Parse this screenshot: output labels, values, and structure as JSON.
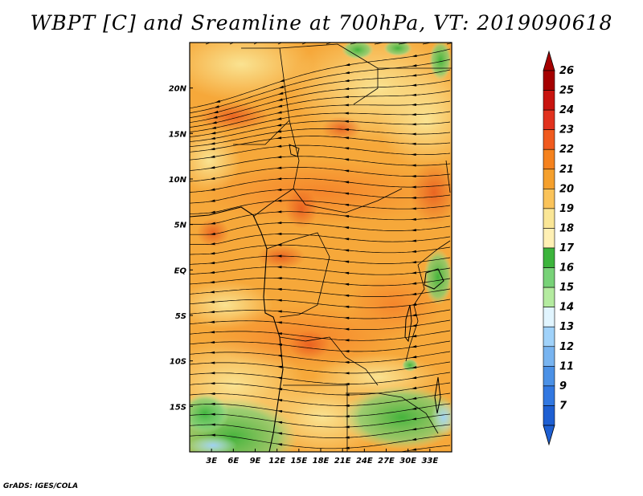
{
  "title": "WBPT [C] and Sreamline at 700hPa, VT: 2019090618",
  "footer": "GrADS: IGES/COLA",
  "map": {
    "lon_range": [
      0,
      36
    ],
    "lat_range": [
      -20,
      25
    ],
    "x_ticks": [
      "3E",
      "6E",
      "9E",
      "12E",
      "15E",
      "18E",
      "21E",
      "24E",
      "27E",
      "30E",
      "33E"
    ],
    "y_ticks": [
      "20N",
      "15N",
      "10N",
      "5N",
      "EQ",
      "5S",
      "10S",
      "15S"
    ]
  },
  "colorbar": {
    "levels": [
      "26",
      "25",
      "24",
      "23",
      "22",
      "21",
      "20",
      "19",
      "18",
      "17",
      "16",
      "15",
      "14",
      "13",
      "12",
      "11",
      "9",
      "7"
    ],
    "colors": [
      "#a50000",
      "#c8140f",
      "#e1321e",
      "#f05a1e",
      "#f5821e",
      "#f5a02d",
      "#fac35a",
      "#fae696",
      "#fff0b4",
      "#3cb43c",
      "#78d278",
      "#b4eba0",
      "#e1f5ff",
      "#a0d2fa",
      "#78b4f0",
      "#4b91e6",
      "#3278e1",
      "#1e5fd2"
    ]
  }
}
